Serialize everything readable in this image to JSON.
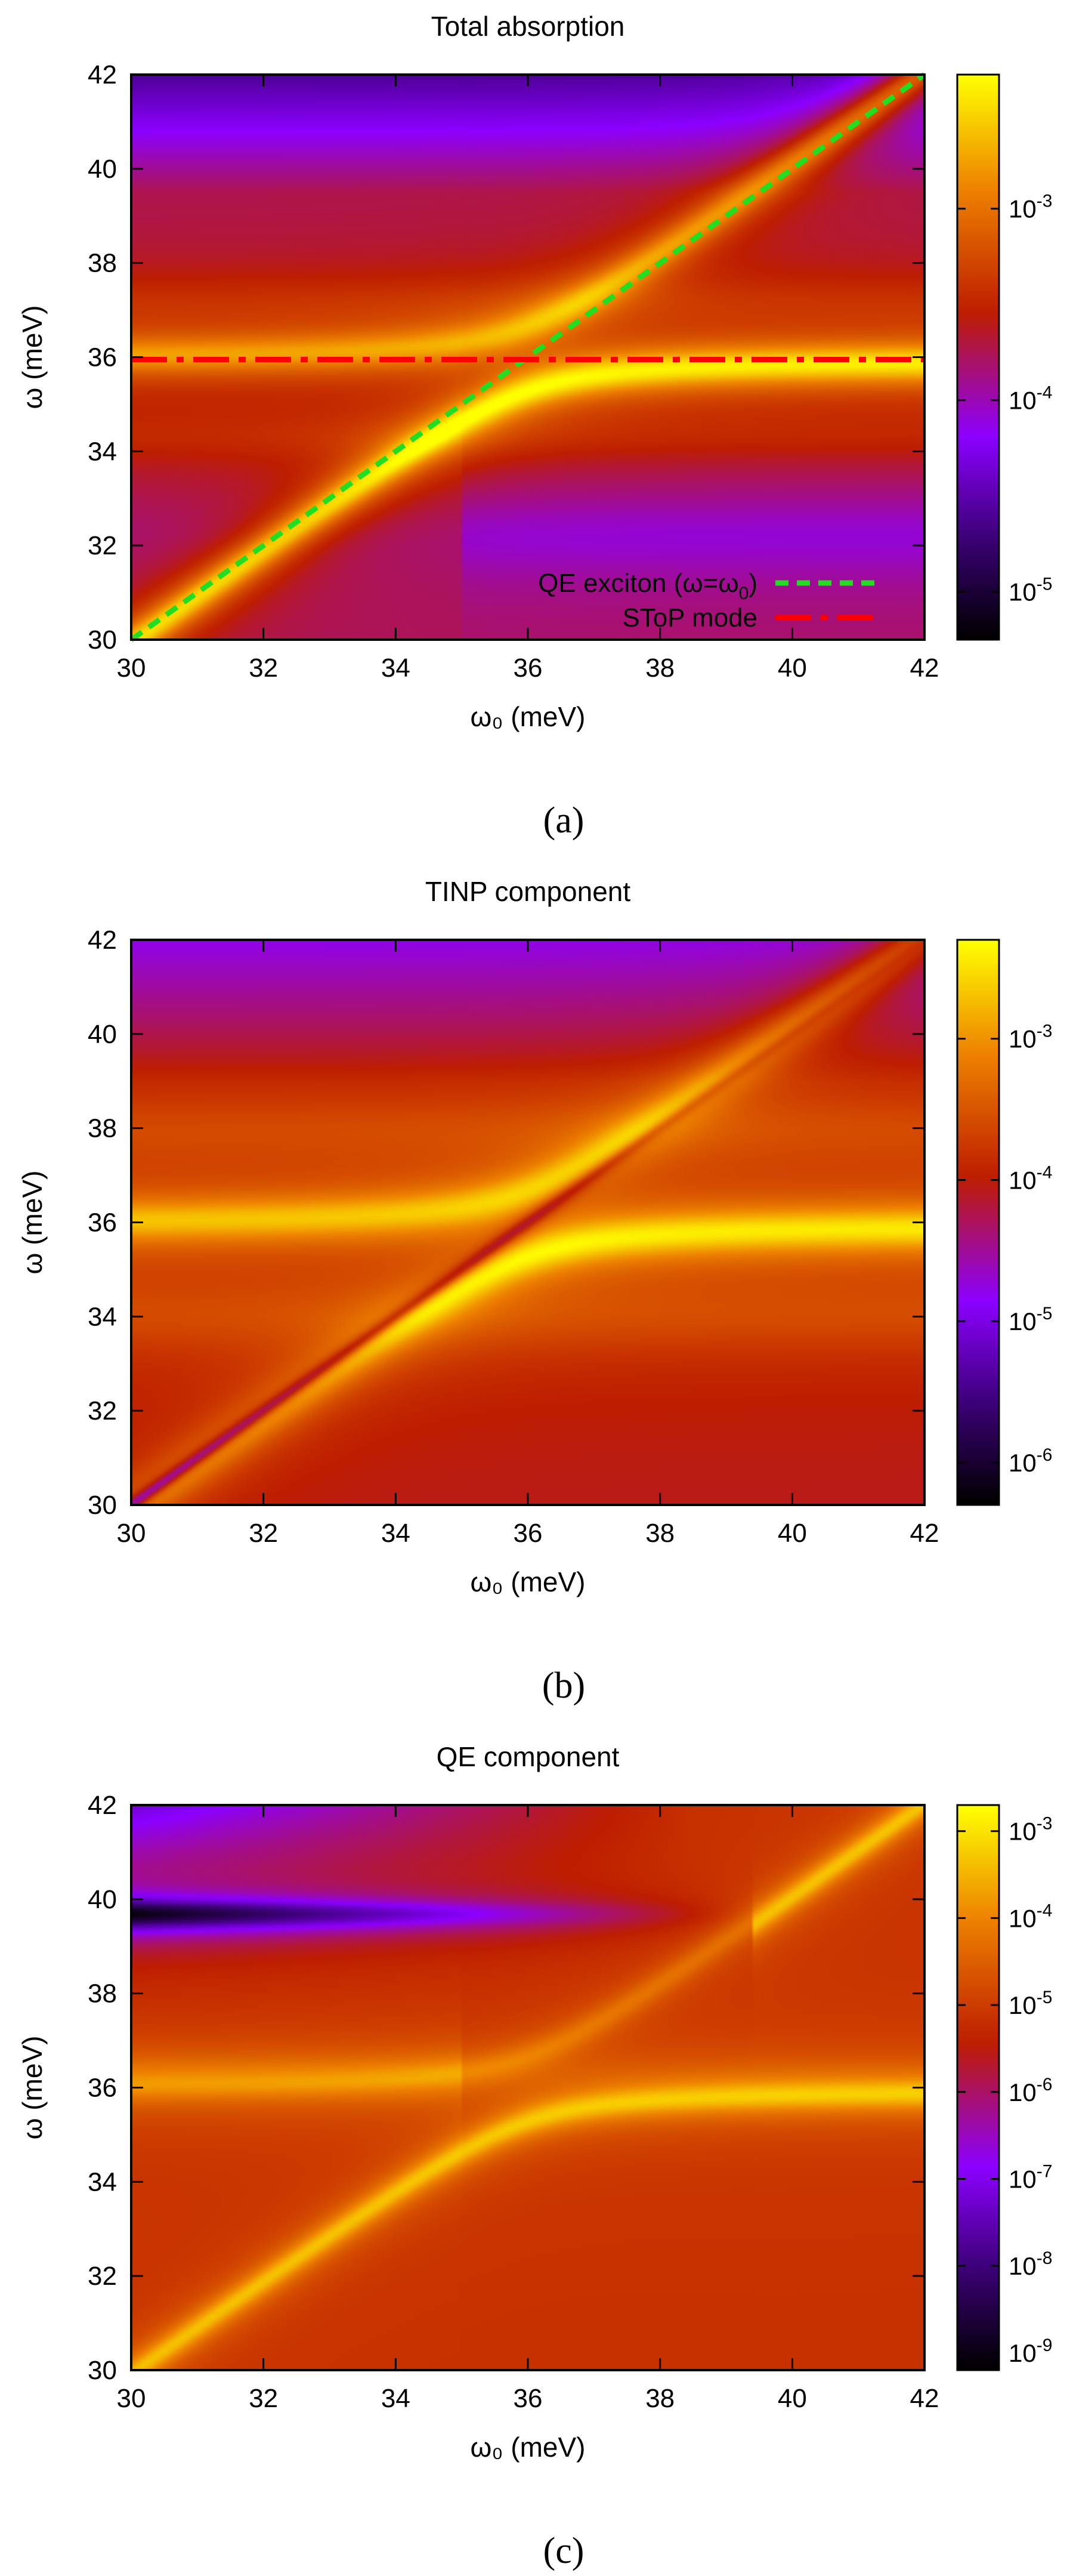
{
  "chart_data": [
    {
      "id": "a",
      "type": "heatmap",
      "title": "Total absorption",
      "xlabel": "ω₀ (meV)",
      "ylabel": "ω (meV)",
      "xlim": [
        30,
        42
      ],
      "ylim": [
        30,
        42
      ],
      "x_ticks": [
        "30",
        "32",
        "34",
        "36",
        "38",
        "40",
        "42"
      ],
      "y_ticks": [
        "30",
        "32",
        "34",
        "36",
        "38",
        "40",
        "42"
      ],
      "colorbar_ticks": [
        {
          "base": "10",
          "exp": "-5",
          "value": 1e-05
        },
        {
          "base": "10",
          "exp": "-4",
          "value": 0.0001
        },
        {
          "base": "10",
          "exp": "-3",
          "value": 0.001
        }
      ],
      "colorbar_range_log10": [
        -5.25,
        -2.3
      ],
      "legend": [
        {
          "label_parts": [
            "QE exciton (ω=ω",
            "0",
            ")"
          ],
          "color": "#22dd22",
          "style": "dashed"
        },
        {
          "label_parts": [
            "SToP mode",
            "",
            ""
          ],
          "color": "#ff0000",
          "style": "dash-dot"
        }
      ],
      "overlays": [
        {
          "name": "QE exciton line",
          "points": [
            [
              30,
              30
            ],
            [
              42,
              42
            ]
          ]
        },
        {
          "name": "SToP mode line",
          "points": [
            [
              30,
              35.95
            ],
            [
              42,
              35.95
            ]
          ]
        }
      ],
      "features": {
        "lower_polariton": "rises from ω≈30 at ω₀=30 to ω≈35.5 at ω₀=42",
        "upper_polariton": "flat at ω≈36.3 for low ω₀ bending up to the diagonal near ω₀≈39",
        "anticrossing_center": [
          36.0,
          36.0
        ]
      },
      "caption": "(a)"
    },
    {
      "id": "b",
      "type": "heatmap",
      "title": "TINP component",
      "xlabel": "ω₀ (meV)",
      "ylabel": "ω (meV)",
      "xlim": [
        30,
        42
      ],
      "ylim": [
        30,
        42
      ],
      "x_ticks": [
        "30",
        "32",
        "34",
        "36",
        "38",
        "40",
        "42"
      ],
      "y_ticks": [
        "30",
        "32",
        "34",
        "36",
        "38",
        "40",
        "42"
      ],
      "colorbar_ticks": [
        {
          "base": "10",
          "exp": "-6",
          "value": 1e-06
        },
        {
          "base": "10",
          "exp": "-5",
          "value": 1e-05
        },
        {
          "base": "10",
          "exp": "-4",
          "value": 0.0001
        },
        {
          "base": "10",
          "exp": "-3",
          "value": 0.001
        }
      ],
      "colorbar_range_log10": [
        -6.3,
        -2.3
      ],
      "features": {
        "dark_diagonal": "minimum along ω≈ω₀ (deepest near ω₀=30)",
        "bright_bands": "ω≈36.3 (left) and ω≈35.5 (right)"
      },
      "caption": "(b)"
    },
    {
      "id": "c",
      "type": "heatmap",
      "title": "QE component",
      "xlabel": "ω₀ (meV)",
      "ylabel": "ω (meV)",
      "xlim": [
        30,
        42
      ],
      "ylim": [
        30,
        42
      ],
      "x_ticks": [
        "30",
        "32",
        "34",
        "36",
        "38",
        "40",
        "42"
      ],
      "y_ticks": [
        "30",
        "32",
        "34",
        "36",
        "38",
        "40",
        "42"
      ],
      "colorbar_ticks": [
        {
          "base": "10",
          "exp": "-9",
          "value": 1e-09
        },
        {
          "base": "10",
          "exp": "-8",
          "value": 1e-08
        },
        {
          "base": "10",
          "exp": "-7",
          "value": 1e-07
        },
        {
          "base": "10",
          "exp": "-6",
          "value": 1e-06
        },
        {
          "base": "10",
          "exp": "-5",
          "value": 1e-05
        },
        {
          "base": "10",
          "exp": "-4",
          "value": 0.0001
        },
        {
          "base": "10",
          "exp": "-3",
          "value": 0.001
        }
      ],
      "colorbar_range_log10": [
        -9.2,
        -2.7
      ],
      "features": {
        "dark_band": "minimum at ω≈39.7 for low ω₀",
        "node_point": [
          39.4,
          39.6
        ],
        "bright_curve": "lower polariton from ω≈30 at ω₀=30.5 to ω≈35.5 at ω₀=42"
      },
      "caption": "(c)"
    }
  ]
}
